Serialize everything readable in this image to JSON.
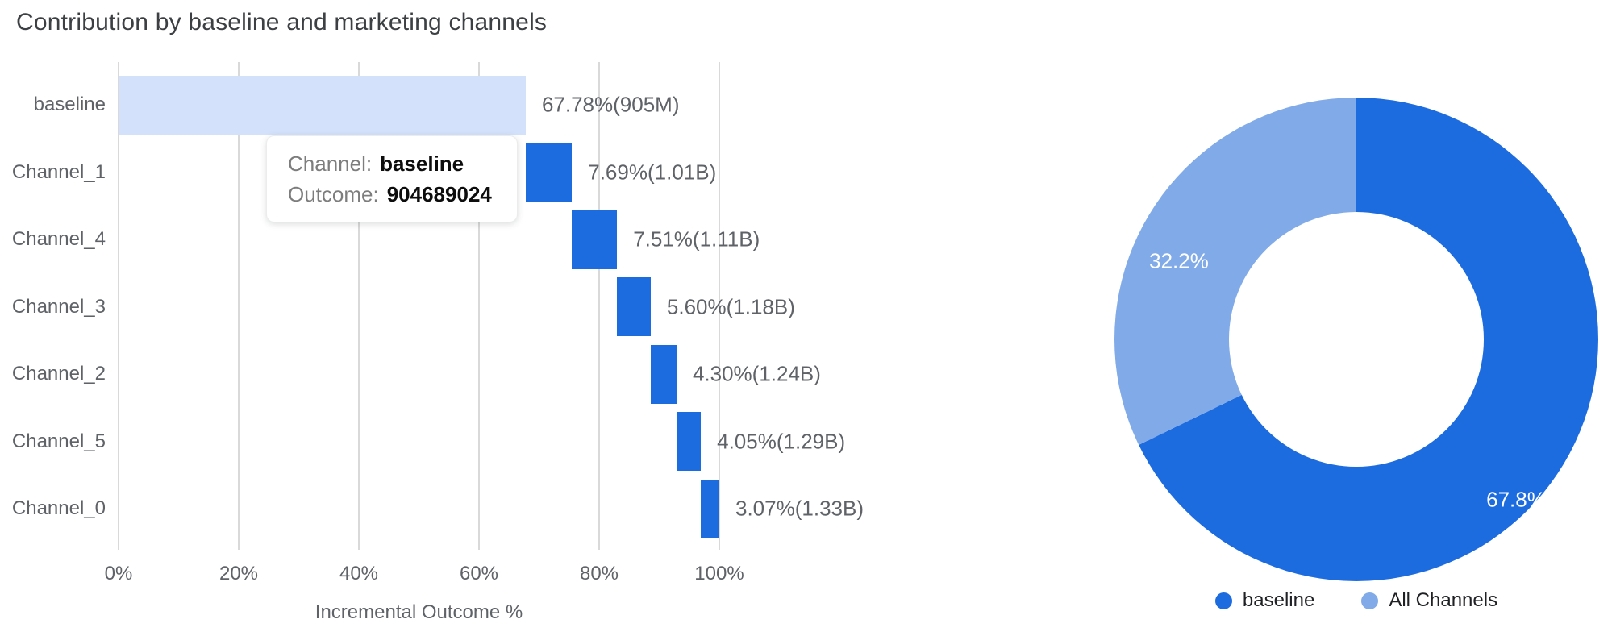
{
  "page_title": "Contribution by baseline and marketing channels",
  "colors": {
    "primary_blue": "#1c6ce0",
    "light_blue": "#80aae8",
    "baseline_bar": "#d3e1fb",
    "gridline": "#d9d9d9",
    "title_gray": "#3c4043",
    "label_gray": "#5f6368",
    "legend_text": "#202124",
    "tooltip_label_gray": "#7d7d7d",
    "tooltip_value_black": "#0d0d0d",
    "donut_label_white": "#ffffff"
  },
  "tooltip": {
    "channel_label": "Channel:",
    "channel_value": "baseline",
    "outcome_label": "Outcome:",
    "outcome_value": "904689024"
  },
  "legend": [
    {
      "label": "baseline",
      "color_key": "primary_blue"
    },
    {
      "label": "All Channels",
      "color_key": "light_blue"
    }
  ],
  "chart_data": [
    {
      "type": "bar",
      "subtype": "horizontal-waterfall",
      "title": "Contribution by baseline and marketing channels",
      "categories": [
        "baseline",
        "Channel_1",
        "Channel_4",
        "Channel_3",
        "Channel_2",
        "Channel_5",
        "Channel_0"
      ],
      "series": [
        {
          "name": "Incremental Outcome %",
          "starts": [
            0,
            67.78,
            75.47,
            82.98,
            88.58,
            92.88,
            96.93
          ],
          "values": [
            67.78,
            7.69,
            7.51,
            5.6,
            4.3,
            4.05,
            3.07
          ]
        }
      ],
      "data_labels": [
        "67.78%(905M)",
        "7.69%(1.01B)",
        "7.51%(1.11B)",
        "5.60%(1.18B)",
        "4.30%(1.24B)",
        "4.05%(1.29B)",
        "3.07%(1.33B)"
      ],
      "xlabel": "Incremental Outcome %",
      "ylabel": "",
      "xlim": [
        0,
        100
      ],
      "x_ticks": [
        "0%",
        "20%",
        "40%",
        "60%",
        "80%",
        "100%"
      ],
      "grid": true,
      "tooltip": {
        "Channel": "baseline",
        "Outcome": "904689024"
      }
    },
    {
      "type": "pie",
      "subtype": "donut",
      "labels": [
        "baseline",
        "All Channels"
      ],
      "values": [
        67.8,
        32.2
      ],
      "data_labels": [
        "67.8%",
        "32.2%"
      ],
      "legend_position": "bottom",
      "start_angle_deg": 0,
      "direction": "clockwise"
    }
  ]
}
